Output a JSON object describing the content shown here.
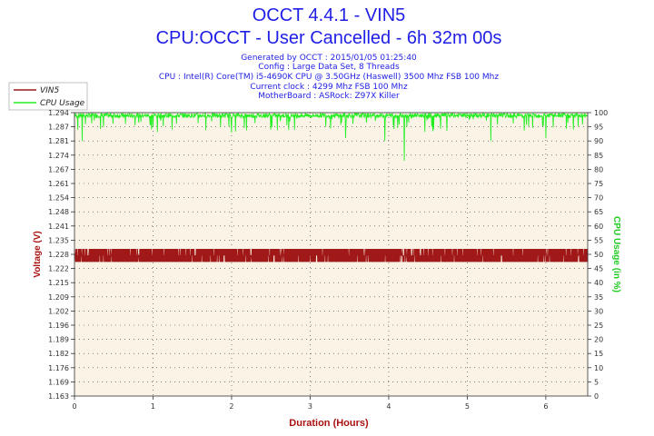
{
  "title_line1": "OCCT 4.4.1 - VIN5",
  "title_line2": "CPU:OCCT - User Cancelled - 6h 32m 00s",
  "info_lines": [
    "Generated by OCCT : 2015/01/05 01:25:40",
    "Config : Large Data Set, 8 Threads",
    "CPU : Intel(R) Core(TM) i5-4690K CPU @ 3.50GHz (Haswell) 3500 Mhz FSB 100 Mhz",
    "Current clock : 4299 Mhz FSB 100 Mhz",
    "MotherBoard : ASRock: Z97X Killer"
  ],
  "colors": {
    "plot_bg": "#fbf4e6",
    "vin5": "#a01818",
    "cpu": "#22ee22",
    "title": "#1e1ee6"
  },
  "chart_data": {
    "type": "line",
    "xlabel": "Duration (Hours)",
    "ylabel_left": "Voltage (V)",
    "ylabel_right": "CPU Usage (in %)",
    "xlim": [
      0,
      6.533
    ],
    "ylim_left": [
      1.163,
      1.294
    ],
    "ylim_right": [
      0,
      100
    ],
    "x_ticks": [
      "0",
      "1",
      "2",
      "3",
      "4",
      "5",
      "6"
    ],
    "y_left_ticks": [
      "1.294",
      "1.287",
      "1.281",
      "1.274",
      "1.267",
      "1.261",
      "1.254",
      "1.248",
      "1.241",
      "1.235",
      "1.228",
      "1.222",
      "1.215",
      "1.209",
      "1.202",
      "1.196",
      "1.189",
      "1.182",
      "1.176",
      "1.169",
      "1.163"
    ],
    "y_right_ticks": [
      "100",
      "95",
      "90",
      "85",
      "80",
      "75",
      "70",
      "65",
      "60",
      "55",
      "50",
      "45",
      "40",
      "35",
      "30",
      "25",
      "20",
      "15",
      "10",
      "5",
      "0"
    ],
    "grid": true,
    "legend_position": "top-left",
    "series": [
      {
        "name": "VIN5",
        "axis": "left",
        "oscillates_between": [
          1.225,
          1.231
        ],
        "typical": 1.228
      },
      {
        "name": "CPU Usage",
        "axis": "right",
        "typical": 99,
        "dips": [
          {
            "x": 0.04,
            "y": 94
          },
          {
            "x": 0.1,
            "y": 90
          },
          {
            "x": 0.65,
            "y": 96
          },
          {
            "x": 1.0,
            "y": 95
          },
          {
            "x": 1.3,
            "y": 96
          },
          {
            "x": 2.0,
            "y": 93
          },
          {
            "x": 2.5,
            "y": 94
          },
          {
            "x": 2.8,
            "y": 94
          },
          {
            "x": 3.2,
            "y": 95
          },
          {
            "x": 3.45,
            "y": 91
          },
          {
            "x": 3.95,
            "y": 90
          },
          {
            "x": 4.2,
            "y": 83
          },
          {
            "x": 4.55,
            "y": 95
          },
          {
            "x": 5.3,
            "y": 90
          },
          {
            "x": 6.0,
            "y": 91
          },
          {
            "x": 6.35,
            "y": 94
          }
        ]
      }
    ]
  }
}
